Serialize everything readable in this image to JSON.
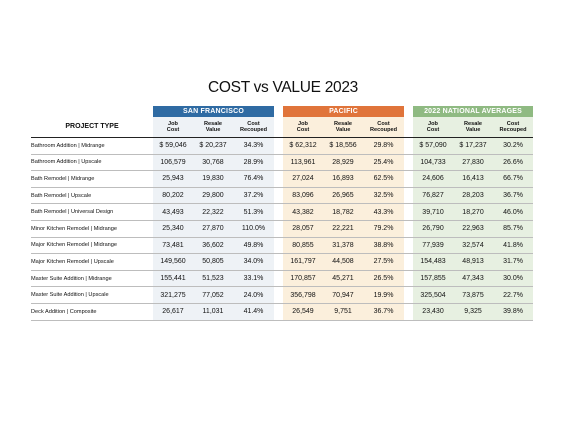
{
  "title": "COST vs VALUE 2023",
  "groups": {
    "sf": "SAN FRANCISCO",
    "pacific": "PACIFIC",
    "national": "2022 NATIONAL AVERAGES"
  },
  "headers": {
    "project_type": "PROJECT TYPE",
    "job_cost_1": "Job",
    "job_cost_2": "Cost",
    "resale_1": "Resale",
    "resale_2": "Value",
    "recoup_1": "Cost",
    "recoup_2": "Recouped"
  },
  "colors": {
    "sf": "#2f6ba3",
    "pacific": "#e0743a",
    "national": "#8fba82"
  },
  "rows": [
    {
      "project": "Bathroom Addition | Midrange",
      "sf": [
        "$ 59,046",
        "$ 20,237",
        "34.3%"
      ],
      "pac": [
        "$ 62,312",
        "$ 18,556",
        "29.8%"
      ],
      "nat": [
        "$ 57,090",
        "$ 17,237",
        "30.2%"
      ]
    },
    {
      "project": "Bathroom Addition | Upscale",
      "sf": [
        "106,579",
        "30,768",
        "28.9%"
      ],
      "pac": [
        "113,961",
        "28,929",
        "25.4%"
      ],
      "nat": [
        "104,733",
        "27,830",
        "26.6%"
      ]
    },
    {
      "project": "Bath Remodel | Midrange",
      "sf": [
        "25,943",
        "19,830",
        "76.4%"
      ],
      "pac": [
        "27,024",
        "16,893",
        "62.5%"
      ],
      "nat": [
        "24,606",
        "16,413",
        "66.7%"
      ]
    },
    {
      "project": "Bath Remodel | Upscale",
      "sf": [
        "80,202",
        "29,800",
        "37.2%"
      ],
      "pac": [
        "83,096",
        "26,965",
        "32.5%"
      ],
      "nat": [
        "76,827",
        "28,203",
        "36.7%"
      ]
    },
    {
      "project": "Bath Remodel | Universal Design",
      "sf": [
        "43,493",
        "22,322",
        "51.3%"
      ],
      "pac": [
        "43,382",
        "18,782",
        "43.3%"
      ],
      "nat": [
        "39,710",
        "18,270",
        "46.0%"
      ]
    },
    {
      "project": "Minor Kitchen Remodel | Midrange",
      "sf": [
        "25,340",
        "27,870",
        "110.0%"
      ],
      "pac": [
        "28,057",
        "22,221",
        "79.2%"
      ],
      "nat": [
        "26,790",
        "22,963",
        "85.7%"
      ]
    },
    {
      "project": "Major Kitchen Remodel | Midrange",
      "sf": [
        "73,481",
        "36,602",
        "49.8%"
      ],
      "pac": [
        "80,855",
        "31,378",
        "38.8%"
      ],
      "nat": [
        "77,939",
        "32,574",
        "41.8%"
      ]
    },
    {
      "project": "Major Kitchen Remodel | Upscale",
      "sf": [
        "149,560",
        "50,805",
        "34.0%"
      ],
      "pac": [
        "161,797",
        "44,508",
        "27.5%"
      ],
      "nat": [
        "154,483",
        "48,913",
        "31.7%"
      ]
    },
    {
      "project": "Master Suite Addition | Midrange",
      "sf": [
        "155,441",
        "51,523",
        "33.1%"
      ],
      "pac": [
        "170,857",
        "45,271",
        "26.5%"
      ],
      "nat": [
        "157,855",
        "47,343",
        "30.0%"
      ]
    },
    {
      "project": "Master Suite Addition | Upscale",
      "sf": [
        "321,275",
        "77,052",
        "24.0%"
      ],
      "pac": [
        "356,798",
        "70,947",
        "19.9%"
      ],
      "nat": [
        "325,504",
        "73,875",
        "22.7%"
      ]
    },
    {
      "project": "Deck Addition | Composite",
      "sf": [
        "26,617",
        "11,031",
        "41.4%"
      ],
      "pac": [
        "26,549",
        "9,751",
        "36.7%"
      ],
      "nat": [
        "23,430",
        "9,325",
        "39.8%"
      ]
    }
  ]
}
